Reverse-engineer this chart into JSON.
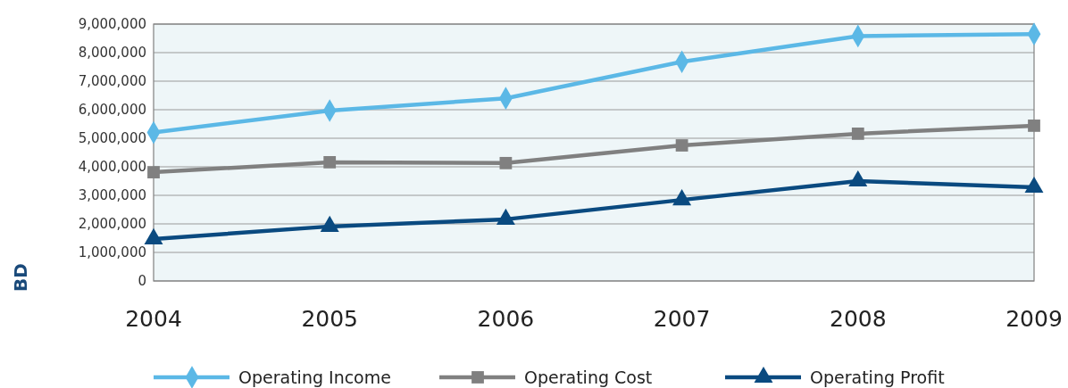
{
  "chart_data": {
    "type": "line",
    "ylabel": "BD",
    "categories": [
      "2004",
      "2005",
      "2006",
      "2007",
      "2008",
      "2009"
    ],
    "ylim": [
      0,
      9000000
    ],
    "yticks": [
      {
        "value": 0,
        "label": "0"
      },
      {
        "value": 1000000,
        "label": "1,000,000"
      },
      {
        "value": 2000000,
        "label": "2,000,000"
      },
      {
        "value": 3000000,
        "label": "3,000,000"
      },
      {
        "value": 4000000,
        "label": "4,000,000"
      },
      {
        "value": 5000000,
        "label": "5,000,000"
      },
      {
        "value": 6000000,
        "label": "6,000,000"
      },
      {
        "value": 7000000,
        "label": "7,000,000"
      },
      {
        "value": 8000000,
        "label": "8,000,000"
      },
      {
        "value": 9000000,
        "label": "9,000,000"
      }
    ],
    "grid": "y",
    "legend": "bottom",
    "series": [
      {
        "name": "Operating Income",
        "color": "#5bb8e6",
        "marker": "diamond",
        "values": [
          5200000,
          5970000,
          6400000,
          7680000,
          8580000,
          8650000
        ]
      },
      {
        "name": "Operating Cost",
        "color": "#808080",
        "marker": "square",
        "values": [
          3810000,
          4160000,
          4130000,
          4750000,
          5160000,
          5440000
        ]
      },
      {
        "name": "Operating Profit",
        "color": "#0a4a80",
        "marker": "triangle",
        "values": [
          1470000,
          1910000,
          2160000,
          2840000,
          3500000,
          3280000
        ]
      }
    ]
  }
}
